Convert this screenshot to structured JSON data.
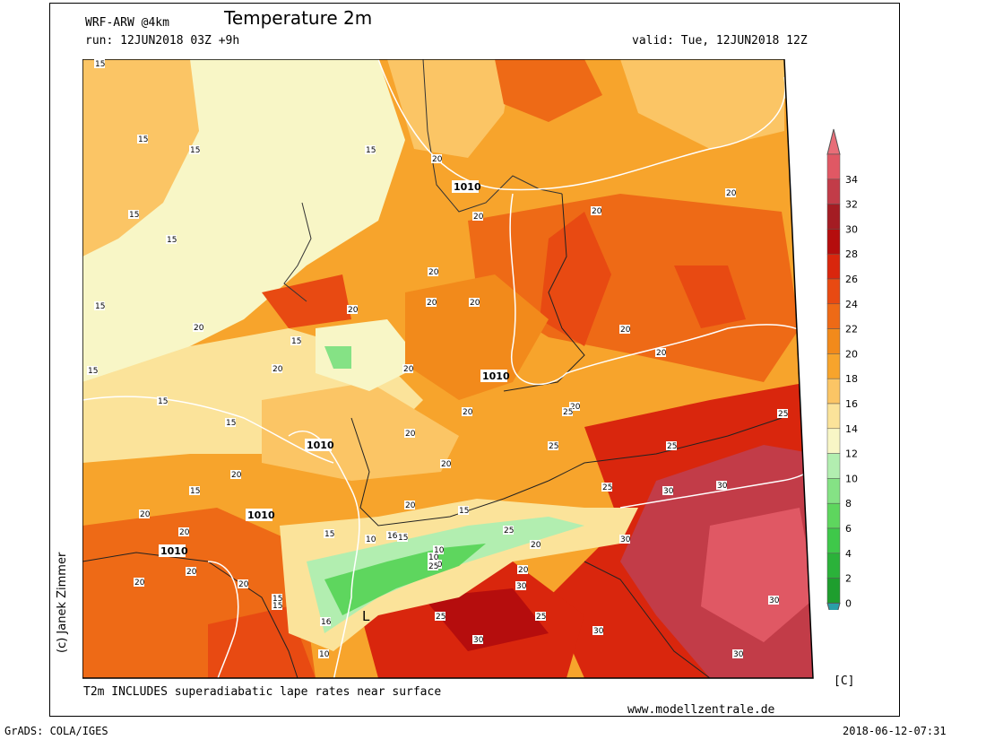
{
  "header": {
    "model": "WRF-ARW @4km",
    "title": "Temperature 2m",
    "run": "run: 12JUN2018 03Z +9h",
    "valid": "valid: Tue, 12JUN2018 12Z"
  },
  "footer": {
    "note": "T2m INCLUDES superadiabatic lape rates near surface",
    "website": "www.modellzentrale.de",
    "grads": "GrADS: COLA/IGES",
    "timestamp": "2018-06-12-07:31"
  },
  "credit": "(c) Janek Zimmer",
  "colorbar": {
    "unit": "[C]",
    "levels": [
      0,
      2,
      4,
      6,
      8,
      10,
      12,
      14,
      16,
      18,
      20,
      22,
      24,
      26,
      28,
      30,
      32,
      34
    ],
    "colors": [
      "#1e9e2e",
      "#2bb23a",
      "#3fc84a",
      "#5ed65e",
      "#85e285",
      "#b2eeb0",
      "#f8f6c6",
      "#fbe39a",
      "#fbc565",
      "#f7a42c",
      "#f28a1b",
      "#ee6a16",
      "#e84a12",
      "#d9260d",
      "#b50d0d",
      "#a41c23",
      "#c23c48",
      "#e05864"
    ],
    "under_color": "#2a9fa8",
    "over_color": "#e86e78"
  },
  "map_labels": {
    "temps": [
      "15",
      "15",
      "15",
      "15",
      "15",
      "15",
      "15",
      "15",
      "15",
      "15",
      "15",
      "15",
      "20",
      "20",
      "20",
      "20",
      "20",
      "20",
      "20",
      "20",
      "20",
      "20",
      "20",
      "20",
      "20",
      "20",
      "20",
      "20",
      "20",
      "20",
      "25",
      "25",
      "25",
      "25",
      "25",
      "25",
      "25",
      "30",
      "30",
      "30",
      "30",
      "30",
      "30",
      "10",
      "10",
      "10",
      "15",
      "15",
      "15",
      "15",
      "20",
      "20",
      "20",
      "25",
      "20",
      "20",
      "20",
      "20",
      "20",
      "25",
      "30",
      "30",
      "15",
      "16",
      "10",
      "10",
      "16"
    ],
    "isobars": [
      "1010",
      "1010",
      "1010",
      "1010",
      "1010"
    ],
    "low": "L"
  }
}
